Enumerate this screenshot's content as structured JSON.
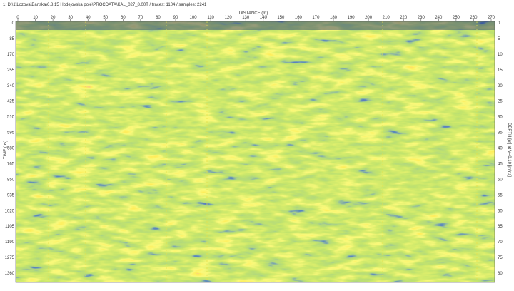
{
  "header": {
    "text": "1: D:\\1\\Lozova\\Banska\\6.8.15 Hodejovska pole\\PROCDATA\\KAL_027_8.00T / traces: 1104 / samples: 2241"
  },
  "x_axis": {
    "label": "DISTANCE (m)",
    "ticks": [
      0,
      10,
      20,
      30,
      40,
      50,
      60,
      70,
      80,
      90,
      100,
      110,
      120,
      130,
      140,
      150,
      160,
      170,
      180,
      190,
      200,
      210,
      220,
      230,
      240,
      250,
      260,
      270
    ]
  },
  "left_axis": {
    "label": "TIME (ns)",
    "ticks": [
      0,
      85,
      170,
      255,
      340,
      425,
      510,
      595,
      680,
      765,
      850,
      935,
      1020,
      1105,
      1190,
      1275,
      1360
    ]
  },
  "right_axis": {
    "label": "DEPTH [m] at V=0.10 [m/ns]",
    "ticks": [
      0,
      5,
      10,
      15,
      20,
      25,
      30,
      35,
      40,
      45,
      50,
      55,
      60,
      65,
      70,
      75,
      80
    ]
  }
}
